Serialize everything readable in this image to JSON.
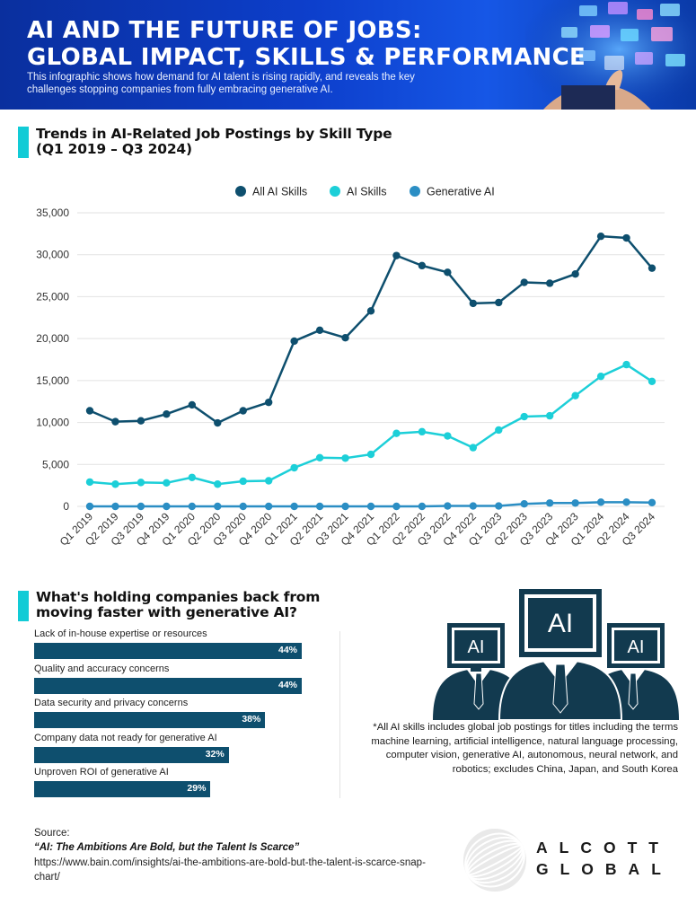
{
  "header": {
    "title_line1": "AI AND THE FUTURE OF JOBS:",
    "title_line2": "GLOBAL IMPACT, SKILLS & PERFORMANCE",
    "subtitle": "This infographic shows how demand for AI talent is rising rapidly, and reveals the key challenges stopping companies from fully embracing generative AI."
  },
  "section1": {
    "title_line1": "Trends in AI-Related Job Postings by Skill Type",
    "title_line2": "(Q1 2019 – Q3 2024)"
  },
  "section2": {
    "title_line1": "What's holding companies back from",
    "title_line2": "moving faster with generative AI?"
  },
  "colors": {
    "accent": "#12cbd6",
    "header_blue": "#0d3fcc",
    "all_ai": "#0e4f6e",
    "ai_skills": "#1ccfd8",
    "generative_ai": "#2b8ec4",
    "bar": "#0e4f6e"
  },
  "chart_data": [
    {
      "type": "line",
      "categories": [
        "Q1 2019",
        "Q2 2019",
        "Q3 2019",
        "Q4 2019",
        "Q1 2020",
        "Q2 2020",
        "Q3 2020",
        "Q4 2020",
        "Q1 2021",
        "Q2 2021",
        "Q3 2021",
        "Q4 2021",
        "Q1 2022",
        "Q2 2022",
        "Q3 2022",
        "Q4 2022",
        "Q1 2023",
        "Q2 2023",
        "Q3 2023",
        "Q4 2023",
        "Q1 2024",
        "Q2 2024",
        "Q3 2024"
      ],
      "series": [
        {
          "name": "All AI Skills",
          "color": "#0e4f6e",
          "values": [
            11400,
            10100,
            10200,
            11000,
            12100,
            9950,
            11400,
            12400,
            19700,
            21000,
            20100,
            23300,
            29900,
            28700,
            27900,
            24200,
            24300,
            26700,
            26600,
            27700,
            32200,
            32000,
            28400
          ]
        },
        {
          "name": "AI Skills",
          "color": "#1ccfd8",
          "values": [
            2900,
            2650,
            2850,
            2800,
            3450,
            2650,
            3000,
            3050,
            4600,
            5800,
            5750,
            6200,
            8700,
            8900,
            8400,
            7000,
            9100,
            10700,
            10800,
            13200,
            15500,
            16900,
            14900
          ]
        },
        {
          "name": "Generative AI",
          "color": "#2b8ec4",
          "values": [
            0,
            0,
            0,
            0,
            0,
            0,
            0,
            0,
            0,
            0,
            0,
            0,
            0,
            0,
            50,
            50,
            50,
            300,
            400,
            400,
            500,
            500,
            450
          ]
        }
      ],
      "yticks": [
        "0",
        "5,000",
        "10,000",
        "15,000",
        "20,000",
        "25,000",
        "30,000",
        "35,000"
      ],
      "ylim": [
        0,
        35000
      ],
      "grid": true,
      "legend": "top-center"
    },
    {
      "type": "bar",
      "orientation": "horizontal",
      "categories": [
        "Lack of in-house expertise or resources",
        "Quality and accuracy concerns",
        "Data security and privacy concerns",
        "Company data not ready for generative AI",
        "Unproven ROI of generative AI"
      ],
      "values": [
        44,
        44,
        38,
        32,
        29
      ],
      "value_labels": [
        "44%",
        "44%",
        "38%",
        "32%",
        "29%"
      ]
    }
  ],
  "illustration": {
    "badge_text": "AI"
  },
  "footnote": "*All AI skills includes global job postings for titles including the terms machine learning, artificial intelligence, natural language processing, computer vision, generative AI, autonomous, neural network, and robotics; excludes China, Japan, and South Korea",
  "source": {
    "label": "Source:",
    "title": "“AI: The Ambitions Are Bold, but the Talent Is Scarce”",
    "url": "https://www.bain.com/insights/ai-the-ambitions-are-bold-but-the-talent-is-scarce-snap-chart/"
  },
  "logo": {
    "line1": "ALCOTT",
    "line2": "GLOBAL"
  }
}
